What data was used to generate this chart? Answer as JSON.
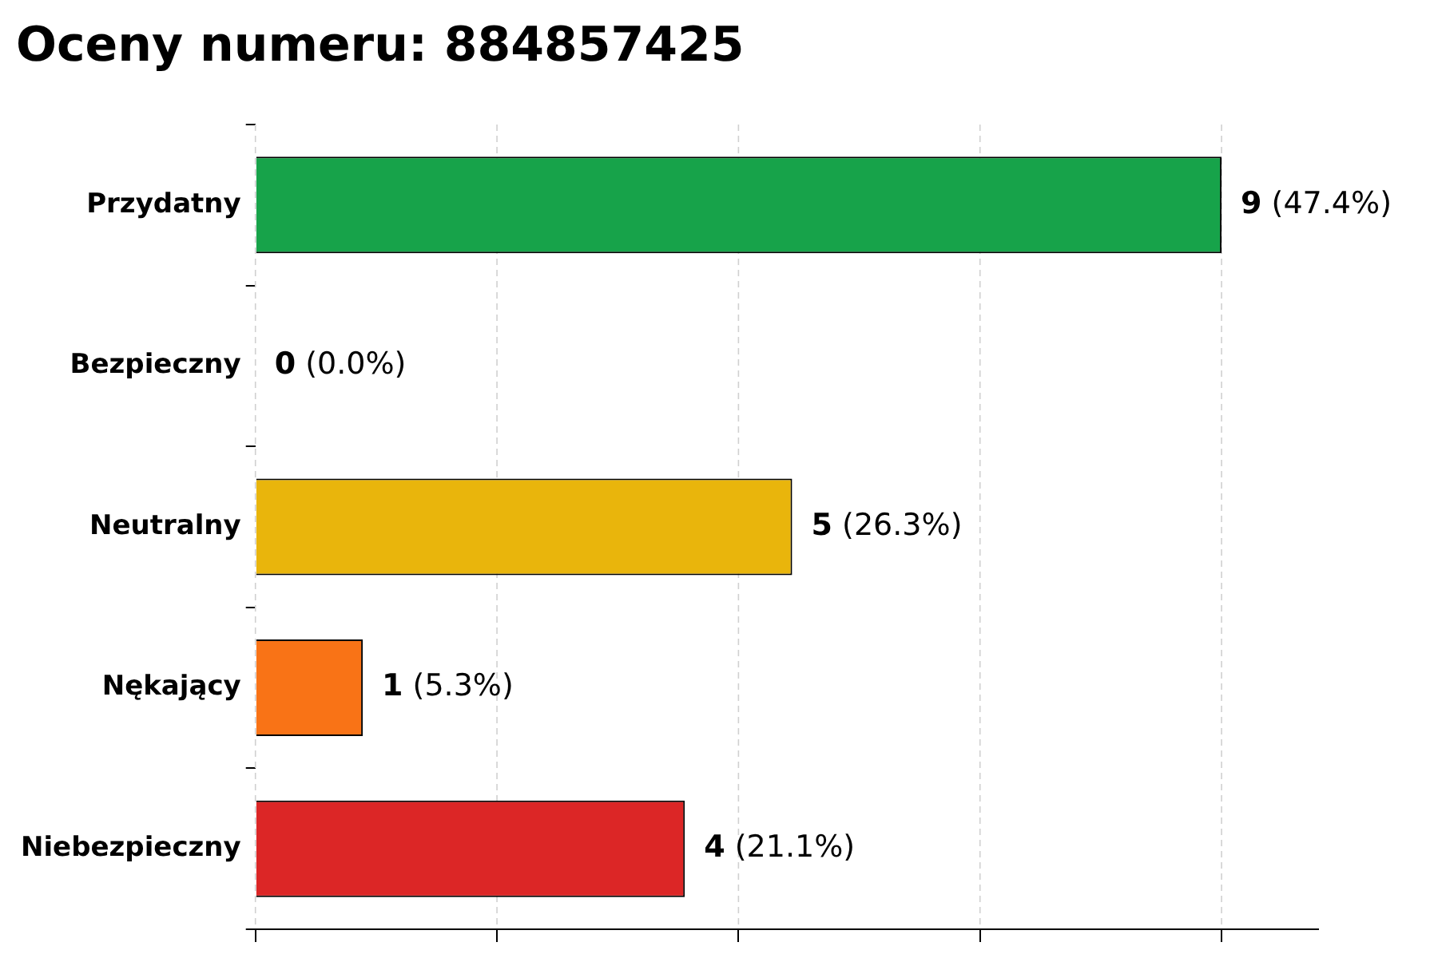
{
  "chart_data": {
    "type": "bar",
    "orientation": "horizontal",
    "title": "Oceny numeru: 884857425",
    "categories": [
      "Przydatny",
      "Bezpieczny",
      "Neutralny",
      "Nękający",
      "Niebezpieczny"
    ],
    "values": [
      9,
      0,
      5,
      1,
      4
    ],
    "colors": [
      "#17a34a",
      "#6b7280",
      "#e9b50c",
      "#f97316",
      "#dc2626"
    ],
    "value_labels": [
      "9 (47.4%)",
      "0 (0.0%)",
      "5 (26.3%)",
      "1 (5.3%)",
      "4 (21.1%)"
    ],
    "xlim": [
      0,
      9.9
    ],
    "xticks": [
      {
        "value": 0,
        "label": null
      },
      {
        "value": 2.25,
        "label": null
      },
      {
        "value": 4.5,
        "label": null
      },
      {
        "value": 6.75,
        "label": null
      },
      {
        "value": 9,
        "label": null
      }
    ],
    "tick_labels": "y",
    "grid": "x"
  }
}
